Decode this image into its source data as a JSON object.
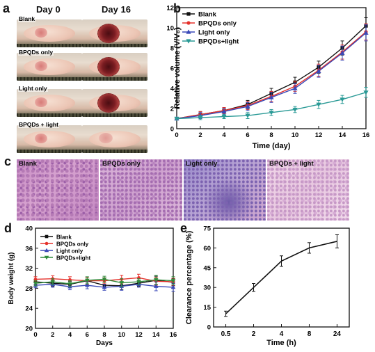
{
  "panels": {
    "a": {
      "letter": "a",
      "col_headers": [
        "Day 0",
        "Day 16"
      ],
      "row_labels": [
        "Blank",
        "BPQDs only",
        "Light only",
        "BPQDs + light"
      ]
    },
    "c": {
      "letter": "c",
      "labels": [
        "Blank",
        "BPQDs only",
        "Light only",
        "BPQDs + light"
      ]
    }
  },
  "chart_data": [
    {
      "panel": "b",
      "type": "line",
      "xlabel": "Time (day)",
      "ylabel": "Relative volume (V/V₀)",
      "xlim": [
        0,
        16
      ],
      "ylim": [
        0,
        12
      ],
      "xticks": [
        0,
        2,
        4,
        6,
        8,
        10,
        12,
        14,
        16
      ],
      "yticks": [
        0,
        2,
        4,
        6,
        8,
        10,
        12
      ],
      "legend_position": "top-left",
      "x": [
        0,
        2,
        4,
        6,
        8,
        10,
        12,
        14,
        16
      ],
      "series": [
        {
          "name": "Blank",
          "color": "#111111",
          "marker": "square",
          "values": [
            1,
            1.4,
            1.8,
            2.4,
            3.5,
            4.6,
            6.1,
            8.0,
            10.2
          ],
          "errors": [
            0.1,
            0.3,
            0.3,
            0.4,
            0.5,
            0.5,
            0.6,
            0.7,
            0.8
          ]
        },
        {
          "name": "BPQDs only",
          "color": "#e5312b",
          "marker": "circle",
          "values": [
            1,
            1.4,
            1.8,
            2.3,
            3.2,
            4.2,
            5.8,
            7.6,
            9.6
          ],
          "errors": [
            0.1,
            0.3,
            0.3,
            0.4,
            0.5,
            0.5,
            0.6,
            0.7,
            0.8
          ]
        },
        {
          "name": "Light only",
          "color": "#3a49b8",
          "marker": "triangle",
          "values": [
            1,
            1.3,
            1.7,
            2.2,
            3.1,
            4.0,
            5.7,
            7.5,
            9.5
          ],
          "errors": [
            0.1,
            0.3,
            0.3,
            0.4,
            0.5,
            0.5,
            0.6,
            0.7,
            0.8
          ]
        },
        {
          "name": "BPQDs+light",
          "color": "#2a9a96",
          "marker": "triangle-down",
          "values": [
            1,
            1.1,
            1.2,
            1.3,
            1.6,
            1.9,
            2.4,
            2.9,
            3.6
          ],
          "errors": [
            0.1,
            0.2,
            0.2,
            0.3,
            0.3,
            0.3,
            0.4,
            0.4,
            0.5
          ]
        }
      ]
    },
    {
      "panel": "d",
      "type": "line",
      "xlabel": "Days",
      "ylabel": "Body weight (g)",
      "xlim": [
        0,
        16
      ],
      "ylim": [
        20,
        40
      ],
      "xticks": [
        0,
        2,
        4,
        6,
        8,
        10,
        12,
        14,
        16
      ],
      "yticks": [
        20,
        24,
        28,
        32,
        36,
        40
      ],
      "legend_position": "top-left",
      "x": [
        0,
        2,
        4,
        6,
        8,
        10,
        12,
        14,
        16
      ],
      "series": [
        {
          "name": "Blank",
          "color": "#111111",
          "marker": "square",
          "values": [
            29.3,
            29.0,
            28.8,
            29.5,
            28.6,
            28.5,
            29.0,
            29.6,
            29.2
          ],
          "errors": [
            0.5,
            0.6,
            0.6,
            0.7,
            0.6,
            0.8,
            0.6,
            0.8,
            0.7
          ]
        },
        {
          "name": "BPQDs only",
          "color": "#e5312b",
          "marker": "circle",
          "values": [
            29.8,
            29.9,
            29.7,
            29.5,
            29.5,
            29.8,
            30.1,
            29.4,
            29.3
          ],
          "errors": [
            0.5,
            0.6,
            0.6,
            0.7,
            0.6,
            0.8,
            0.7,
            0.8,
            0.7
          ]
        },
        {
          "name": "Light only",
          "color": "#3a49b8",
          "marker": "triangle",
          "values": [
            28.6,
            28.8,
            28.3,
            28.6,
            28.2,
            28.4,
            28.8,
            28.4,
            28.2
          ],
          "errors": [
            0.5,
            0.6,
            0.6,
            0.7,
            0.6,
            0.8,
            0.6,
            0.9,
            0.8
          ]
        },
        {
          "name": "BPQDs+light",
          "color": "#2e8b3a",
          "marker": "triangle-down",
          "values": [
            29.0,
            29.3,
            28.9,
            29.6,
            29.8,
            29.1,
            29.3,
            29.7,
            29.5
          ],
          "errors": [
            0.5,
            0.6,
            0.6,
            0.7,
            0.6,
            0.8,
            0.6,
            0.9,
            0.8
          ]
        }
      ]
    },
    {
      "panel": "e",
      "type": "line",
      "xlabel": "Time (h)",
      "ylabel": "Clearance percentage (%)",
      "categories": [
        "0.5",
        "2",
        "4",
        "8",
        "24"
      ],
      "ylim": [
        0,
        75
      ],
      "yticks": [
        "0",
        "15",
        "30",
        "45",
        "60",
        "75"
      ],
      "series": [
        {
          "name": "",
          "color": "#111111",
          "marker": "none",
          "values": [
            10,
            30,
            50,
            60,
            65
          ],
          "errors": [
            2,
            3,
            4,
            4,
            5
          ]
        }
      ]
    }
  ]
}
